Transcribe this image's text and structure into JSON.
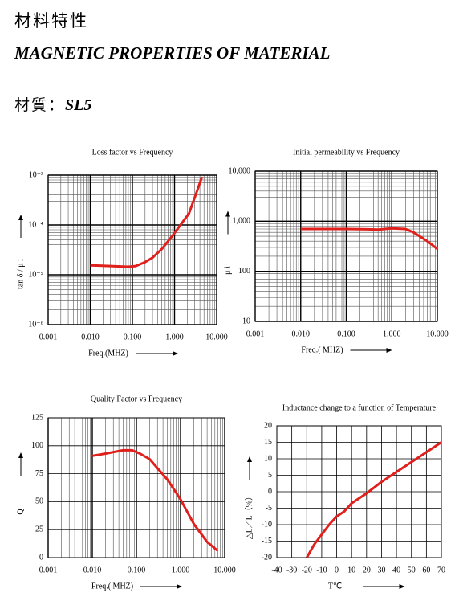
{
  "header": {
    "title_cn": "材料特性",
    "title_en": "MAGNETIC PROPERTIES OF MATERIAL",
    "material_label": "材質：",
    "material": "SL5"
  },
  "chart_data": [
    {
      "type": "line",
      "title": "Loss factor vs Frequency",
      "x_label": "Freq.(MHZ)",
      "y_label": "tan δ / μ i",
      "xscale": "log",
      "yscale": "log",
      "grid": true,
      "color": "#e0201c",
      "x": [
        0.01,
        0.03,
        0.08,
        0.12,
        0.2,
        0.3,
        0.5,
        1,
        2.2,
        3.3,
        4.5
      ],
      "values": [
        1.55e-05,
        1.5e-05,
        1.45e-05,
        1.5e-05,
        1.8e-05,
        2.2e-05,
        3.3e-05,
        6.9e-05,
        0.00017,
        0.00044,
        0.00093
      ],
      "xlim": [
        0.001,
        10
      ],
      "xticks": [
        0.001,
        {
          "value": 0.01,
          "label": "0.010"
        },
        {
          "value": 0.1,
          "label": "0.100"
        },
        {
          "value": 1,
          "label": "1.000"
        },
        {
          "value": 10,
          "label": "10.000"
        }
      ],
      "ylim": [
        1e-06,
        0.001
      ],
      "yticks": [
        {
          "value": 1e-06,
          "label": "10⁻⁶"
        },
        {
          "value": 1e-05,
          "label": "10⁻⁵"
        },
        {
          "value": 0.0001,
          "label": "10⁻⁴"
        },
        {
          "value": 0.001,
          "label": "10⁻³"
        }
      ]
    },
    {
      "type": "line",
      "title": "Initial permeability vs Frequency",
      "x_label": "Freq.( MHZ)",
      "y_label": "μ i",
      "xscale": "log",
      "yscale": "log",
      "grid": true,
      "color": "#e0201c",
      "x": [
        0.01,
        0.05,
        0.1,
        0.3,
        0.5,
        1,
        2,
        3,
        6,
        10
      ],
      "values": [
        700,
        700,
        700,
        690,
        680,
        720,
        700,
        600,
        400,
        280
      ],
      "xlim": [
        0.001,
        10
      ],
      "xticks": [
        0.001,
        {
          "value": 0.01,
          "label": "0.010"
        },
        {
          "value": 0.1,
          "label": "0.100"
        },
        {
          "value": 1,
          "label": "1.000"
        },
        {
          "value": 10,
          "label": "10.000"
        }
      ],
      "ylim": [
        10,
        10000
      ],
      "yticks": [
        10,
        100,
        {
          "value": 1000,
          "label": "1,000"
        },
        {
          "value": 10000,
          "label": "10,000"
        }
      ]
    },
    {
      "type": "line",
      "title": "Quality  Factor vs Frequency",
      "x_label": "Freq.( MHZ)",
      "y_label": "Q",
      "xscale": "log",
      "yscale": "linear",
      "grid": true,
      "color": "#e0201c",
      "x": [
        0.01,
        0.02,
        0.05,
        0.08,
        0.12,
        0.2,
        0.3,
        0.5,
        1,
        2,
        4,
        7
      ],
      "values": [
        91,
        93,
        96,
        96,
        93,
        88,
        80,
        70,
        52,
        30,
        14,
        6
      ],
      "xlim": [
        0.001,
        10
      ],
      "xticks": [
        0.001,
        {
          "value": 0.01,
          "label": "0.010"
        },
        {
          "value": 0.1,
          "label": "0.100"
        },
        {
          "value": 1,
          "label": "1.000"
        },
        {
          "value": 10,
          "label": "10.000"
        }
      ],
      "ylim": [
        0,
        125
      ],
      "yticks": [
        0,
        25,
        50,
        75,
        100,
        125
      ]
    },
    {
      "type": "line",
      "title": "Inductance change to a function of  Temperature",
      "x_label": "T℃",
      "y_label": "△L／L（%）",
      "xscale": "linear",
      "yscale": "linear",
      "grid": true,
      "color": "#e0201c",
      "x": [
        -20,
        -15,
        -10,
        -5,
        0,
        5,
        10,
        20,
        30,
        40,
        50,
        60,
        70
      ],
      "values": [
        -20,
        -16,
        -13,
        -10,
        -7.5,
        -6,
        -3.5,
        -0.5,
        3,
        6,
        9,
        12,
        15
      ],
      "xlim": [
        -40,
        70
      ],
      "xticks": [
        -40,
        -30,
        -20,
        -10,
        0,
        10,
        20,
        30,
        40,
        50,
        60,
        70
      ],
      "ylim": [
        -20,
        20
      ],
      "yticks": [
        -20,
        -15,
        -10,
        -5,
        0,
        5,
        10,
        15,
        20
      ]
    }
  ]
}
